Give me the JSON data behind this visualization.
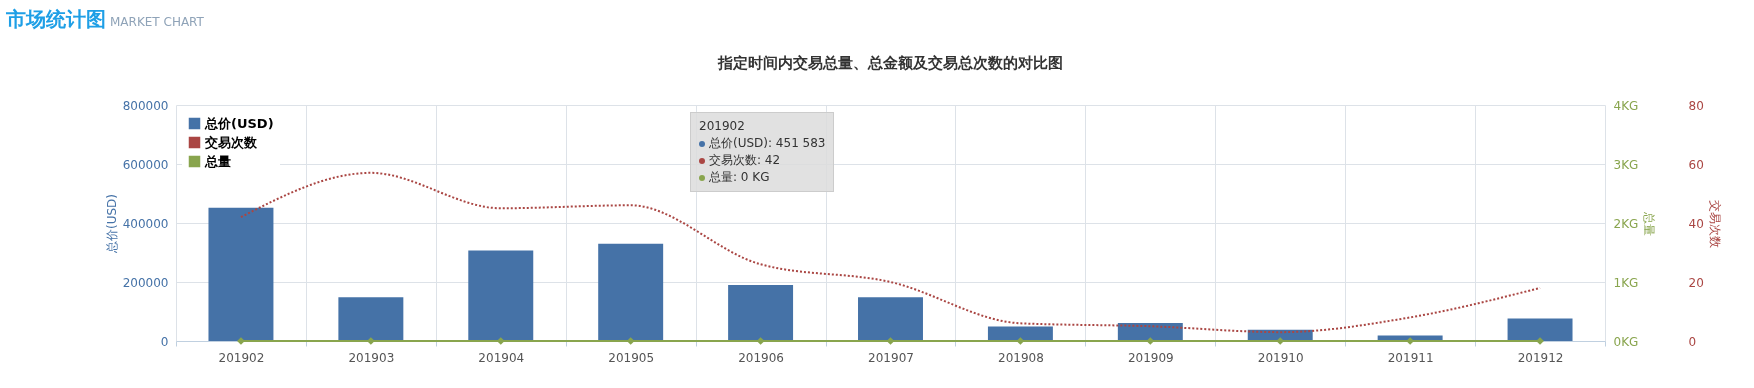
{
  "chart_data": {
    "type": "bar",
    "title": "指定时间内交易总量、总金额及交易总次数的对比图",
    "categories": [
      "201902",
      "201903",
      "201904",
      "201905",
      "201906",
      "201907",
      "201908",
      "201909",
      "201910",
      "201911",
      "201912"
    ],
    "series": [
      {
        "name": "总价(USD)",
        "color": "#4572a7",
        "values": [
          451583,
          148000,
          307000,
          330000,
          190000,
          148000,
          49000,
          61000,
          38000,
          19000,
          76000
        ]
      },
      {
        "name": "交易次数",
        "type": "line",
        "axis": "y3",
        "color": "#aa4643",
        "line_style": "dotted",
        "marker": "none",
        "values": [
          42,
          57,
          45,
          46,
          26,
          20,
          6,
          5,
          3,
          8,
          18
        ]
      },
      {
        "name": "总量",
        "type": "line",
        "axis": "y2",
        "color": "#89a54e",
        "line_style": "solid",
        "marker": "diamond",
        "values": [
          0,
          0,
          0,
          0,
          0,
          0,
          0,
          0,
          0,
          0,
          0
        ]
      }
    ],
    "ylabel": "总价(USD)",
    "y2label": "总量",
    "y3label": "交易次数",
    "ylim": [
      0,
      800000
    ],
    "yticks": [
      0,
      200000,
      400000,
      600000,
      800000
    ],
    "y2lim": [
      0,
      4
    ],
    "y2ticks": [
      {
        "value": 0,
        "label": "0KG"
      },
      {
        "value": 1,
        "label": "1KG"
      },
      {
        "value": 2,
        "label": "2KG"
      },
      {
        "value": 3,
        "label": "3KG"
      },
      {
        "value": 4,
        "label": "4KG"
      }
    ],
    "y3lim": [
      0,
      80
    ],
    "y3ticks": [
      0,
      20,
      40,
      60,
      80
    ],
    "grid": true,
    "legend": "top left",
    "annotations": [
      "市场统计图",
      "MARKET CHART",
      "201902",
      "总价(USD): 451 583",
      "交易次数: 42",
      "总量: 0 KG"
    ]
  }
}
